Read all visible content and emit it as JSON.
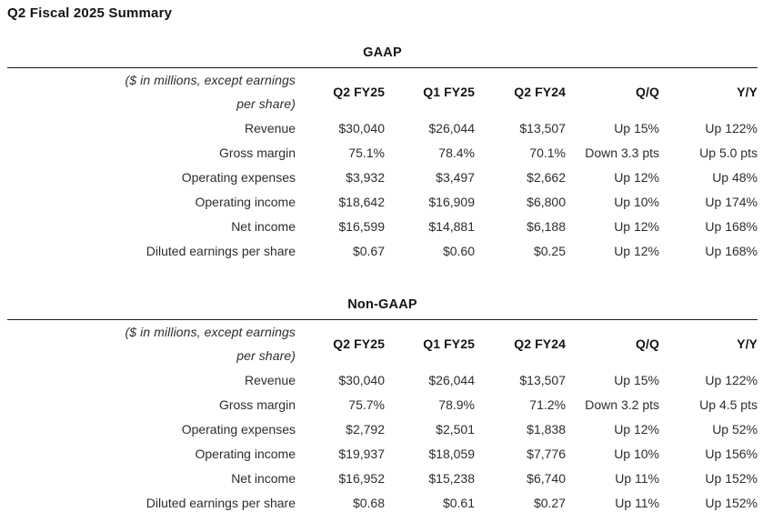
{
  "title": "Q2 Fiscal 2025 Summary",
  "tables": [
    {
      "section_label": "GAAP",
      "note": "($ in millions, except earnings per share)",
      "note_lines": [
        "($ in millions, except earnings",
        "per share)"
      ],
      "columns": [
        "Q2 FY25",
        "Q1 FY25",
        "Q2 FY24",
        "Q/Q",
        "Y/Y"
      ],
      "rows": [
        {
          "label": "Revenue",
          "values": [
            "$30,040",
            "$26,044",
            "$13,507",
            "Up 15%",
            "Up 122%"
          ]
        },
        {
          "label": "Gross margin",
          "values": [
            "75.1%",
            "78.4%",
            "70.1%",
            "Down 3.3 pts",
            "Up 5.0 pts"
          ]
        },
        {
          "label": "Operating expenses",
          "values": [
            "$3,932",
            "$3,497",
            "$2,662",
            "Up 12%",
            "Up 48%"
          ]
        },
        {
          "label": "Operating income",
          "values": [
            "$18,642",
            "$16,909",
            "$6,800",
            "Up 10%",
            "Up 174%"
          ]
        },
        {
          "label": "Net income",
          "values": [
            "$16,599",
            "$14,881",
            "$6,188",
            "Up 12%",
            "Up 168%"
          ]
        },
        {
          "label": "Diluted earnings per share",
          "values": [
            "$0.67",
            "$0.60",
            "$0.25",
            "Up 12%",
            "Up 168%"
          ]
        }
      ]
    },
    {
      "section_label": "Non-GAAP",
      "note": "($ in millions, except earnings per share)",
      "note_lines": [
        "($ in millions, except earnings",
        "per share)"
      ],
      "columns": [
        "Q2 FY25",
        "Q1 FY25",
        "Q2 FY24",
        "Q/Q",
        "Y/Y"
      ],
      "rows": [
        {
          "label": "Revenue",
          "values": [
            "$30,040",
            "$26,044",
            "$13,507",
            "Up 15%",
            "Up 122%"
          ]
        },
        {
          "label": "Gross margin",
          "values": [
            "75.7%",
            "78.9%",
            "71.2%",
            "Down 3.2 pts",
            "Up 4.5 pts"
          ]
        },
        {
          "label": "Operating expenses",
          "values": [
            "$2,792",
            "$2,501",
            "$1,838",
            "Up 12%",
            "Up 52%"
          ]
        },
        {
          "label": "Operating income",
          "values": [
            "$19,937",
            "$18,059",
            "$7,776",
            "Up 10%",
            "Up 156%"
          ]
        },
        {
          "label": "Net income",
          "values": [
            "$16,952",
            "$15,238",
            "$6,740",
            "Up 11%",
            "Up 152%"
          ]
        },
        {
          "label": "Diluted earnings per share",
          "values": [
            "$0.68",
            "$0.61",
            "$0.27",
            "Up 11%",
            "Up 152%"
          ]
        }
      ]
    }
  ],
  "colors": {
    "text": "#2d2d2d",
    "heading": "#141414",
    "rule": "#1c1c1c",
    "background": "#ffffff"
  }
}
